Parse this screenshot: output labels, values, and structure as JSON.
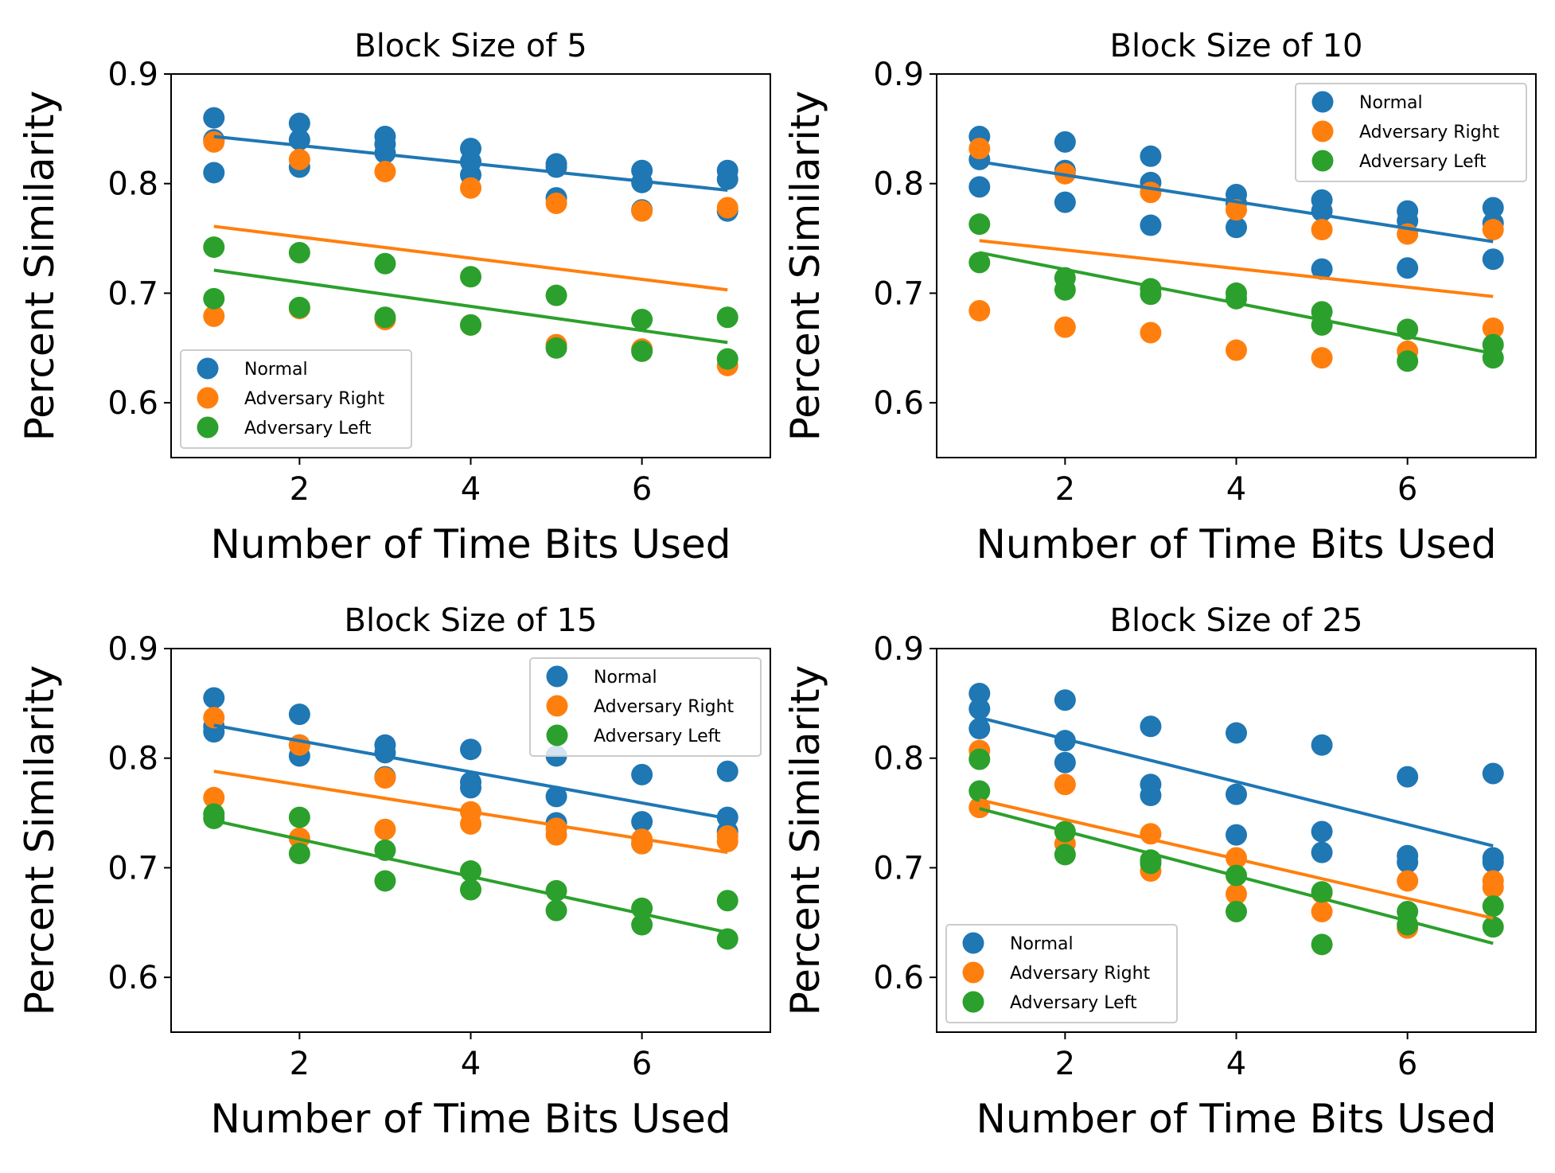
{
  "chart_data": [
    {
      "type": "scatter",
      "title": "Block Size of 5",
      "xlabel": "Number of Time Bits Used",
      "ylabel": "Percent Similarity",
      "xlim": [
        0.5,
        7.5
      ],
      "ylim": [
        0.55,
        0.9
      ],
      "xticks": [
        2,
        4,
        6
      ],
      "xtick_labels": [
        "2",
        "4",
        "6"
      ],
      "yticks": [
        0.6,
        0.7,
        0.8,
        0.9
      ],
      "ytick_labels": [
        "0.6",
        "0.7",
        "0.8",
        "0.9"
      ],
      "grid": false,
      "legend_placement": "lower-left",
      "series": [
        {
          "name": "Normal",
          "color": "#1f77b4",
          "points": [
            [
              1,
              0.86
            ],
            [
              1,
              0.84
            ],
            [
              1,
              0.81
            ],
            [
              2,
              0.855
            ],
            [
              2,
              0.84
            ],
            [
              2,
              0.815
            ],
            [
              3,
              0.843
            ],
            [
              3,
              0.836
            ],
            [
              3,
              0.828
            ],
            [
              4,
              0.832
            ],
            [
              4,
              0.82
            ],
            [
              4,
              0.808
            ],
            [
              5,
              0.818
            ],
            [
              5,
              0.815
            ],
            [
              5,
              0.787
            ],
            [
              6,
              0.812
            ],
            [
              6,
              0.801
            ],
            [
              6,
              0.776
            ],
            [
              7,
              0.812
            ],
            [
              7,
              0.804
            ],
            [
              7,
              0.775
            ]
          ],
          "trend": [
            [
              1,
              0.843
            ],
            [
              7,
              0.794
            ]
          ]
        },
        {
          "name": "Adversary Right",
          "color": "#ff7f0e",
          "points": [
            [
              1,
              0.838
            ],
            [
              1,
              0.679
            ],
            [
              2,
              0.822
            ],
            [
              2,
              0.686
            ],
            [
              3,
              0.811
            ],
            [
              3,
              0.676
            ],
            [
              4,
              0.796
            ],
            [
              4,
              0.671
            ],
            [
              5,
              0.782
            ],
            [
              5,
              0.653
            ],
            [
              6,
              0.775
            ],
            [
              6,
              0.649
            ],
            [
              7,
              0.778
            ],
            [
              7,
              0.634
            ]
          ],
          "trend": [
            [
              1,
              0.761
            ],
            [
              7,
              0.703
            ]
          ]
        },
        {
          "name": "Adversary Left",
          "color": "#2ca02c",
          "points": [
            [
              1,
              0.742
            ],
            [
              1,
              0.695
            ],
            [
              2,
              0.737
            ],
            [
              2,
              0.687
            ],
            [
              3,
              0.727
            ],
            [
              3,
              0.678
            ],
            [
              4,
              0.715
            ],
            [
              4,
              0.671
            ],
            [
              5,
              0.698
            ],
            [
              5,
              0.65
            ],
            [
              6,
              0.676
            ],
            [
              6,
              0.647
            ],
            [
              7,
              0.678
            ],
            [
              7,
              0.64
            ]
          ],
          "trend": [
            [
              1,
              0.721
            ],
            [
              7,
              0.655
            ]
          ]
        }
      ]
    },
    {
      "type": "scatter",
      "title": "Block Size of 10",
      "xlabel": "Number of Time Bits Used",
      "ylabel": "Percent Similarity",
      "xlim": [
        0.5,
        7.5
      ],
      "ylim": [
        0.55,
        0.9
      ],
      "xticks": [
        2,
        4,
        6
      ],
      "xtick_labels": [
        "2",
        "4",
        "6"
      ],
      "yticks": [
        0.6,
        0.7,
        0.8,
        0.9
      ],
      "ytick_labels": [
        "0.6",
        "0.7",
        "0.8",
        "0.9"
      ],
      "grid": false,
      "legend_placement": "upper-right",
      "series": [
        {
          "name": "Normal",
          "color": "#1f77b4",
          "points": [
            [
              1,
              0.843
            ],
            [
              1,
              0.822
            ],
            [
              1,
              0.797
            ],
            [
              2,
              0.838
            ],
            [
              2,
              0.812
            ],
            [
              2,
              0.783
            ],
            [
              3,
              0.825
            ],
            [
              3,
              0.801
            ],
            [
              3,
              0.762
            ],
            [
              4,
              0.79
            ],
            [
              4,
              0.782
            ],
            [
              4,
              0.76
            ],
            [
              5,
              0.785
            ],
            [
              5,
              0.775
            ],
            [
              5,
              0.722
            ],
            [
              6,
              0.775
            ],
            [
              6,
              0.766
            ],
            [
              6,
              0.723
            ],
            [
              7,
              0.778
            ],
            [
              7,
              0.764
            ],
            [
              7,
              0.731
            ]
          ],
          "trend": [
            [
              1,
              0.82
            ],
            [
              7,
              0.747
            ]
          ]
        },
        {
          "name": "Adversary Right",
          "color": "#ff7f0e",
          "points": [
            [
              1,
              0.832
            ],
            [
              1,
              0.684
            ],
            [
              2,
              0.809
            ],
            [
              2,
              0.669
            ],
            [
              3,
              0.792
            ],
            [
              3,
              0.664
            ],
            [
              4,
              0.776
            ],
            [
              4,
              0.648
            ],
            [
              5,
              0.758
            ],
            [
              5,
              0.641
            ],
            [
              6,
              0.754
            ],
            [
              6,
              0.647
            ],
            [
              7,
              0.758
            ],
            [
              7,
              0.668
            ]
          ],
          "trend": [
            [
              1,
              0.748
            ],
            [
              7,
              0.697
            ]
          ]
        },
        {
          "name": "Adversary Left",
          "color": "#2ca02c",
          "points": [
            [
              1,
              0.763
            ],
            [
              1,
              0.728
            ],
            [
              2,
              0.714
            ],
            [
              2,
              0.703
            ],
            [
              3,
              0.704
            ],
            [
              3,
              0.699
            ],
            [
              4,
              0.7
            ],
            [
              4,
              0.695
            ],
            [
              5,
              0.683
            ],
            [
              5,
              0.671
            ],
            [
              6,
              0.667
            ],
            [
              6,
              0.638
            ],
            [
              7,
              0.653
            ],
            [
              7,
              0.641
            ]
          ],
          "trend": [
            [
              1,
              0.737
            ],
            [
              7,
              0.645
            ]
          ]
        }
      ]
    },
    {
      "type": "scatter",
      "title": "Block Size of 15",
      "xlabel": "Number of Time Bits Used",
      "ylabel": "Percent Similarity",
      "xlim": [
        0.5,
        7.5
      ],
      "ylim": [
        0.55,
        0.9
      ],
      "xticks": [
        2,
        4,
        6
      ],
      "xtick_labels": [
        "2",
        "4",
        "6"
      ],
      "yticks": [
        0.6,
        0.7,
        0.8,
        0.9
      ],
      "ytick_labels": [
        "0.6",
        "0.7",
        "0.8",
        "0.9"
      ],
      "grid": false,
      "legend_placement": "upper-right",
      "series": [
        {
          "name": "Normal",
          "color": "#1f77b4",
          "points": [
            [
              1,
              0.855
            ],
            [
              1,
              0.829
            ],
            [
              1,
              0.824
            ],
            [
              2,
              0.84
            ],
            [
              2,
              0.812
            ],
            [
              2,
              0.802
            ],
            [
              3,
              0.812
            ],
            [
              3,
              0.805
            ],
            [
              3,
              0.783
            ],
            [
              4,
              0.808
            ],
            [
              4,
              0.778
            ],
            [
              4,
              0.773
            ],
            [
              5,
              0.802
            ],
            [
              5,
              0.765
            ],
            [
              5,
              0.741
            ],
            [
              6,
              0.785
            ],
            [
              6,
              0.742
            ],
            [
              6,
              0.722
            ],
            [
              7,
              0.788
            ],
            [
              7,
              0.746
            ],
            [
              7,
              0.733
            ]
          ],
          "trend": [
            [
              1,
              0.83
            ],
            [
              7,
              0.745
            ]
          ]
        },
        {
          "name": "Adversary Right",
          "color": "#ff7f0e",
          "points": [
            [
              1,
              0.837
            ],
            [
              1,
              0.764
            ],
            [
              2,
              0.812
            ],
            [
              2,
              0.727
            ],
            [
              3,
              0.782
            ],
            [
              3,
              0.735
            ],
            [
              4,
              0.751
            ],
            [
              4,
              0.74
            ],
            [
              5,
              0.736
            ],
            [
              5,
              0.73
            ],
            [
              6,
              0.726
            ],
            [
              6,
              0.722
            ],
            [
              7,
              0.729
            ],
            [
              7,
              0.724
            ]
          ],
          "trend": [
            [
              1,
              0.788
            ],
            [
              7,
              0.714
            ]
          ]
        },
        {
          "name": "Adversary Left",
          "color": "#2ca02c",
          "points": [
            [
              1,
              0.749
            ],
            [
              1,
              0.745
            ],
            [
              2,
              0.746
            ],
            [
              2,
              0.713
            ],
            [
              3,
              0.716
            ],
            [
              3,
              0.688
            ],
            [
              4,
              0.697
            ],
            [
              4,
              0.68
            ],
            [
              5,
              0.679
            ],
            [
              5,
              0.661
            ],
            [
              6,
              0.663
            ],
            [
              6,
              0.648
            ],
            [
              7,
              0.67
            ],
            [
              7,
              0.635
            ]
          ],
          "trend": [
            [
              1,
              0.743
            ],
            [
              7,
              0.641
            ]
          ]
        }
      ]
    },
    {
      "type": "scatter",
      "title": "Block Size of 25",
      "xlabel": "Number of Time Bits Used",
      "ylabel": "Percent Similarity",
      "xlim": [
        0.5,
        7.5
      ],
      "ylim": [
        0.55,
        0.9
      ],
      "xticks": [
        2,
        4,
        6
      ],
      "xtick_labels": [
        "2",
        "4",
        "6"
      ],
      "yticks": [
        0.6,
        0.7,
        0.8,
        0.9
      ],
      "ytick_labels": [
        "0.6",
        "0.7",
        "0.8",
        "0.9"
      ],
      "grid": false,
      "legend_placement": "lower-left",
      "series": [
        {
          "name": "Normal",
          "color": "#1f77b4",
          "points": [
            [
              1,
              0.859
            ],
            [
              1,
              0.845
            ],
            [
              1,
              0.827
            ],
            [
              2,
              0.853
            ],
            [
              2,
              0.816
            ],
            [
              2,
              0.796
            ],
            [
              3,
              0.829
            ],
            [
              3,
              0.776
            ],
            [
              3,
              0.766
            ],
            [
              4,
              0.823
            ],
            [
              4,
              0.767
            ],
            [
              4,
              0.73
            ],
            [
              5,
              0.812
            ],
            [
              5,
              0.733
            ],
            [
              5,
              0.714
            ],
            [
              6,
              0.783
            ],
            [
              6,
              0.711
            ],
            [
              6,
              0.705
            ],
            [
              7,
              0.786
            ],
            [
              7,
              0.709
            ],
            [
              7,
              0.705
            ]
          ],
          "trend": [
            [
              1,
              0.837
            ],
            [
              7,
              0.72
            ]
          ]
        },
        {
          "name": "Adversary Right",
          "color": "#ff7f0e",
          "points": [
            [
              1,
              0.807
            ],
            [
              1,
              0.755
            ],
            [
              2,
              0.776
            ],
            [
              2,
              0.722
            ],
            [
              3,
              0.731
            ],
            [
              3,
              0.697
            ],
            [
              4,
              0.709
            ],
            [
              4,
              0.676
            ],
            [
              5,
              0.677
            ],
            [
              5,
              0.66
            ],
            [
              6,
              0.688
            ],
            [
              6,
              0.645
            ],
            [
              7,
              0.688
            ],
            [
              7,
              0.682
            ]
          ],
          "trend": [
            [
              1,
              0.762
            ],
            [
              7,
              0.654
            ]
          ]
        },
        {
          "name": "Adversary Left",
          "color": "#2ca02c",
          "points": [
            [
              1,
              0.799
            ],
            [
              1,
              0.77
            ],
            [
              2,
              0.733
            ],
            [
              2,
              0.712
            ],
            [
              3,
              0.707
            ],
            [
              3,
              0.704
            ],
            [
              4,
              0.693
            ],
            [
              4,
              0.66
            ],
            [
              5,
              0.678
            ],
            [
              5,
              0.63
            ],
            [
              6,
              0.66
            ],
            [
              6,
              0.648
            ],
            [
              7,
              0.665
            ],
            [
              7,
              0.646
            ]
          ],
          "trend": [
            [
              1,
              0.754
            ],
            [
              7,
              0.631
            ]
          ]
        }
      ]
    }
  ]
}
